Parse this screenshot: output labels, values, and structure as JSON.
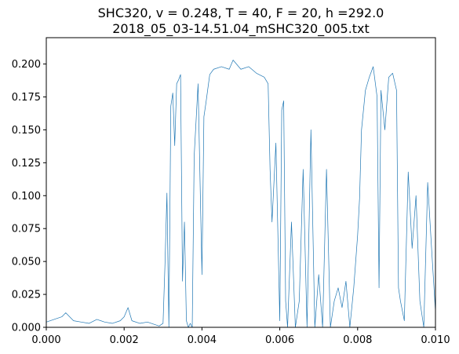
{
  "chart_data": {
    "type": "line",
    "title": "SHC320, v = 0.248, T = 40, F = 20, h =292.0",
    "subtitle": "2018_05_03-14.51.04_mSHC320_005.txt",
    "xlabel": "",
    "ylabel": "",
    "xlim": [
      0.0,
      0.01
    ],
    "ylim": [
      0.0,
      0.22
    ],
    "xticks": [
      "0.000",
      "0.002",
      "0.004",
      "0.006",
      "0.008",
      "0.010"
    ],
    "yticks": [
      "0.000",
      "0.025",
      "0.050",
      "0.075",
      "0.100",
      "0.125",
      "0.150",
      "0.175",
      "0.200"
    ],
    "grid": false,
    "color": "#1f77b4",
    "series": [
      {
        "x": [
          0.0,
          0.0002,
          0.0004,
          0.0005,
          0.0007,
          0.0009,
          0.0011,
          0.0013,
          0.0015,
          0.0017,
          0.0019,
          0.002,
          0.0021,
          0.0022,
          0.0024,
          0.0026,
          0.0028,
          0.0029,
          0.003,
          0.00305,
          0.0031,
          0.00315,
          0.0032,
          0.00325,
          0.0033,
          0.00335,
          0.0034,
          0.00345,
          0.0035,
          0.00355,
          0.0036,
          0.00365,
          0.0037,
          0.00375,
          0.0038,
          0.0039,
          0.004,
          0.00405,
          0.0041,
          0.0042,
          0.0043,
          0.0045,
          0.0047,
          0.0048,
          0.005,
          0.0052,
          0.0054,
          0.0056,
          0.0057,
          0.00575,
          0.0058,
          0.0059,
          0.006,
          0.00605,
          0.0061,
          0.00615,
          0.0062,
          0.0063,
          0.0064,
          0.0065,
          0.0066,
          0.0067,
          0.0068,
          0.0069,
          0.007,
          0.0071,
          0.0072,
          0.0073,
          0.0074,
          0.0075,
          0.0076,
          0.0077,
          0.0078,
          0.0079,
          0.008,
          0.00805,
          0.0081,
          0.0082,
          0.0083,
          0.0084,
          0.0085,
          0.00855,
          0.0086,
          0.0087,
          0.0088,
          0.0089,
          0.009,
          0.00905,
          0.0091,
          0.0092,
          0.0093,
          0.0094,
          0.0095,
          0.0096,
          0.0097,
          0.0098,
          0.0099,
          0.01
        ],
        "y": [
          0.004,
          0.006,
          0.008,
          0.011,
          0.005,
          0.004,
          0.003,
          0.006,
          0.004,
          0.003,
          0.005,
          0.008,
          0.015,
          0.005,
          0.003,
          0.004,
          0.002,
          0.001,
          0.003,
          0.048,
          0.102,
          0.0,
          0.168,
          0.178,
          0.138,
          0.185,
          0.188,
          0.192,
          0.035,
          0.08,
          0.005,
          0.0,
          0.003,
          0.0,
          0.13,
          0.185,
          0.04,
          0.16,
          0.17,
          0.192,
          0.196,
          0.198,
          0.196,
          0.203,
          0.196,
          0.198,
          0.193,
          0.19,
          0.185,
          0.12,
          0.08,
          0.14,
          0.005,
          0.165,
          0.172,
          0.02,
          0.0,
          0.08,
          0.0,
          0.02,
          0.12,
          0.0,
          0.15,
          0.0,
          0.04,
          0.0,
          0.12,
          0.0,
          0.02,
          0.03,
          0.015,
          0.035,
          0.0,
          0.03,
          0.07,
          0.098,
          0.15,
          0.18,
          0.19,
          0.198,
          0.175,
          0.03,
          0.18,
          0.15,
          0.19,
          0.193,
          0.18,
          0.03,
          0.02,
          0.005,
          0.118,
          0.06,
          0.1,
          0.02,
          0.0,
          0.11,
          0.06,
          0.012
        ]
      }
    ]
  }
}
